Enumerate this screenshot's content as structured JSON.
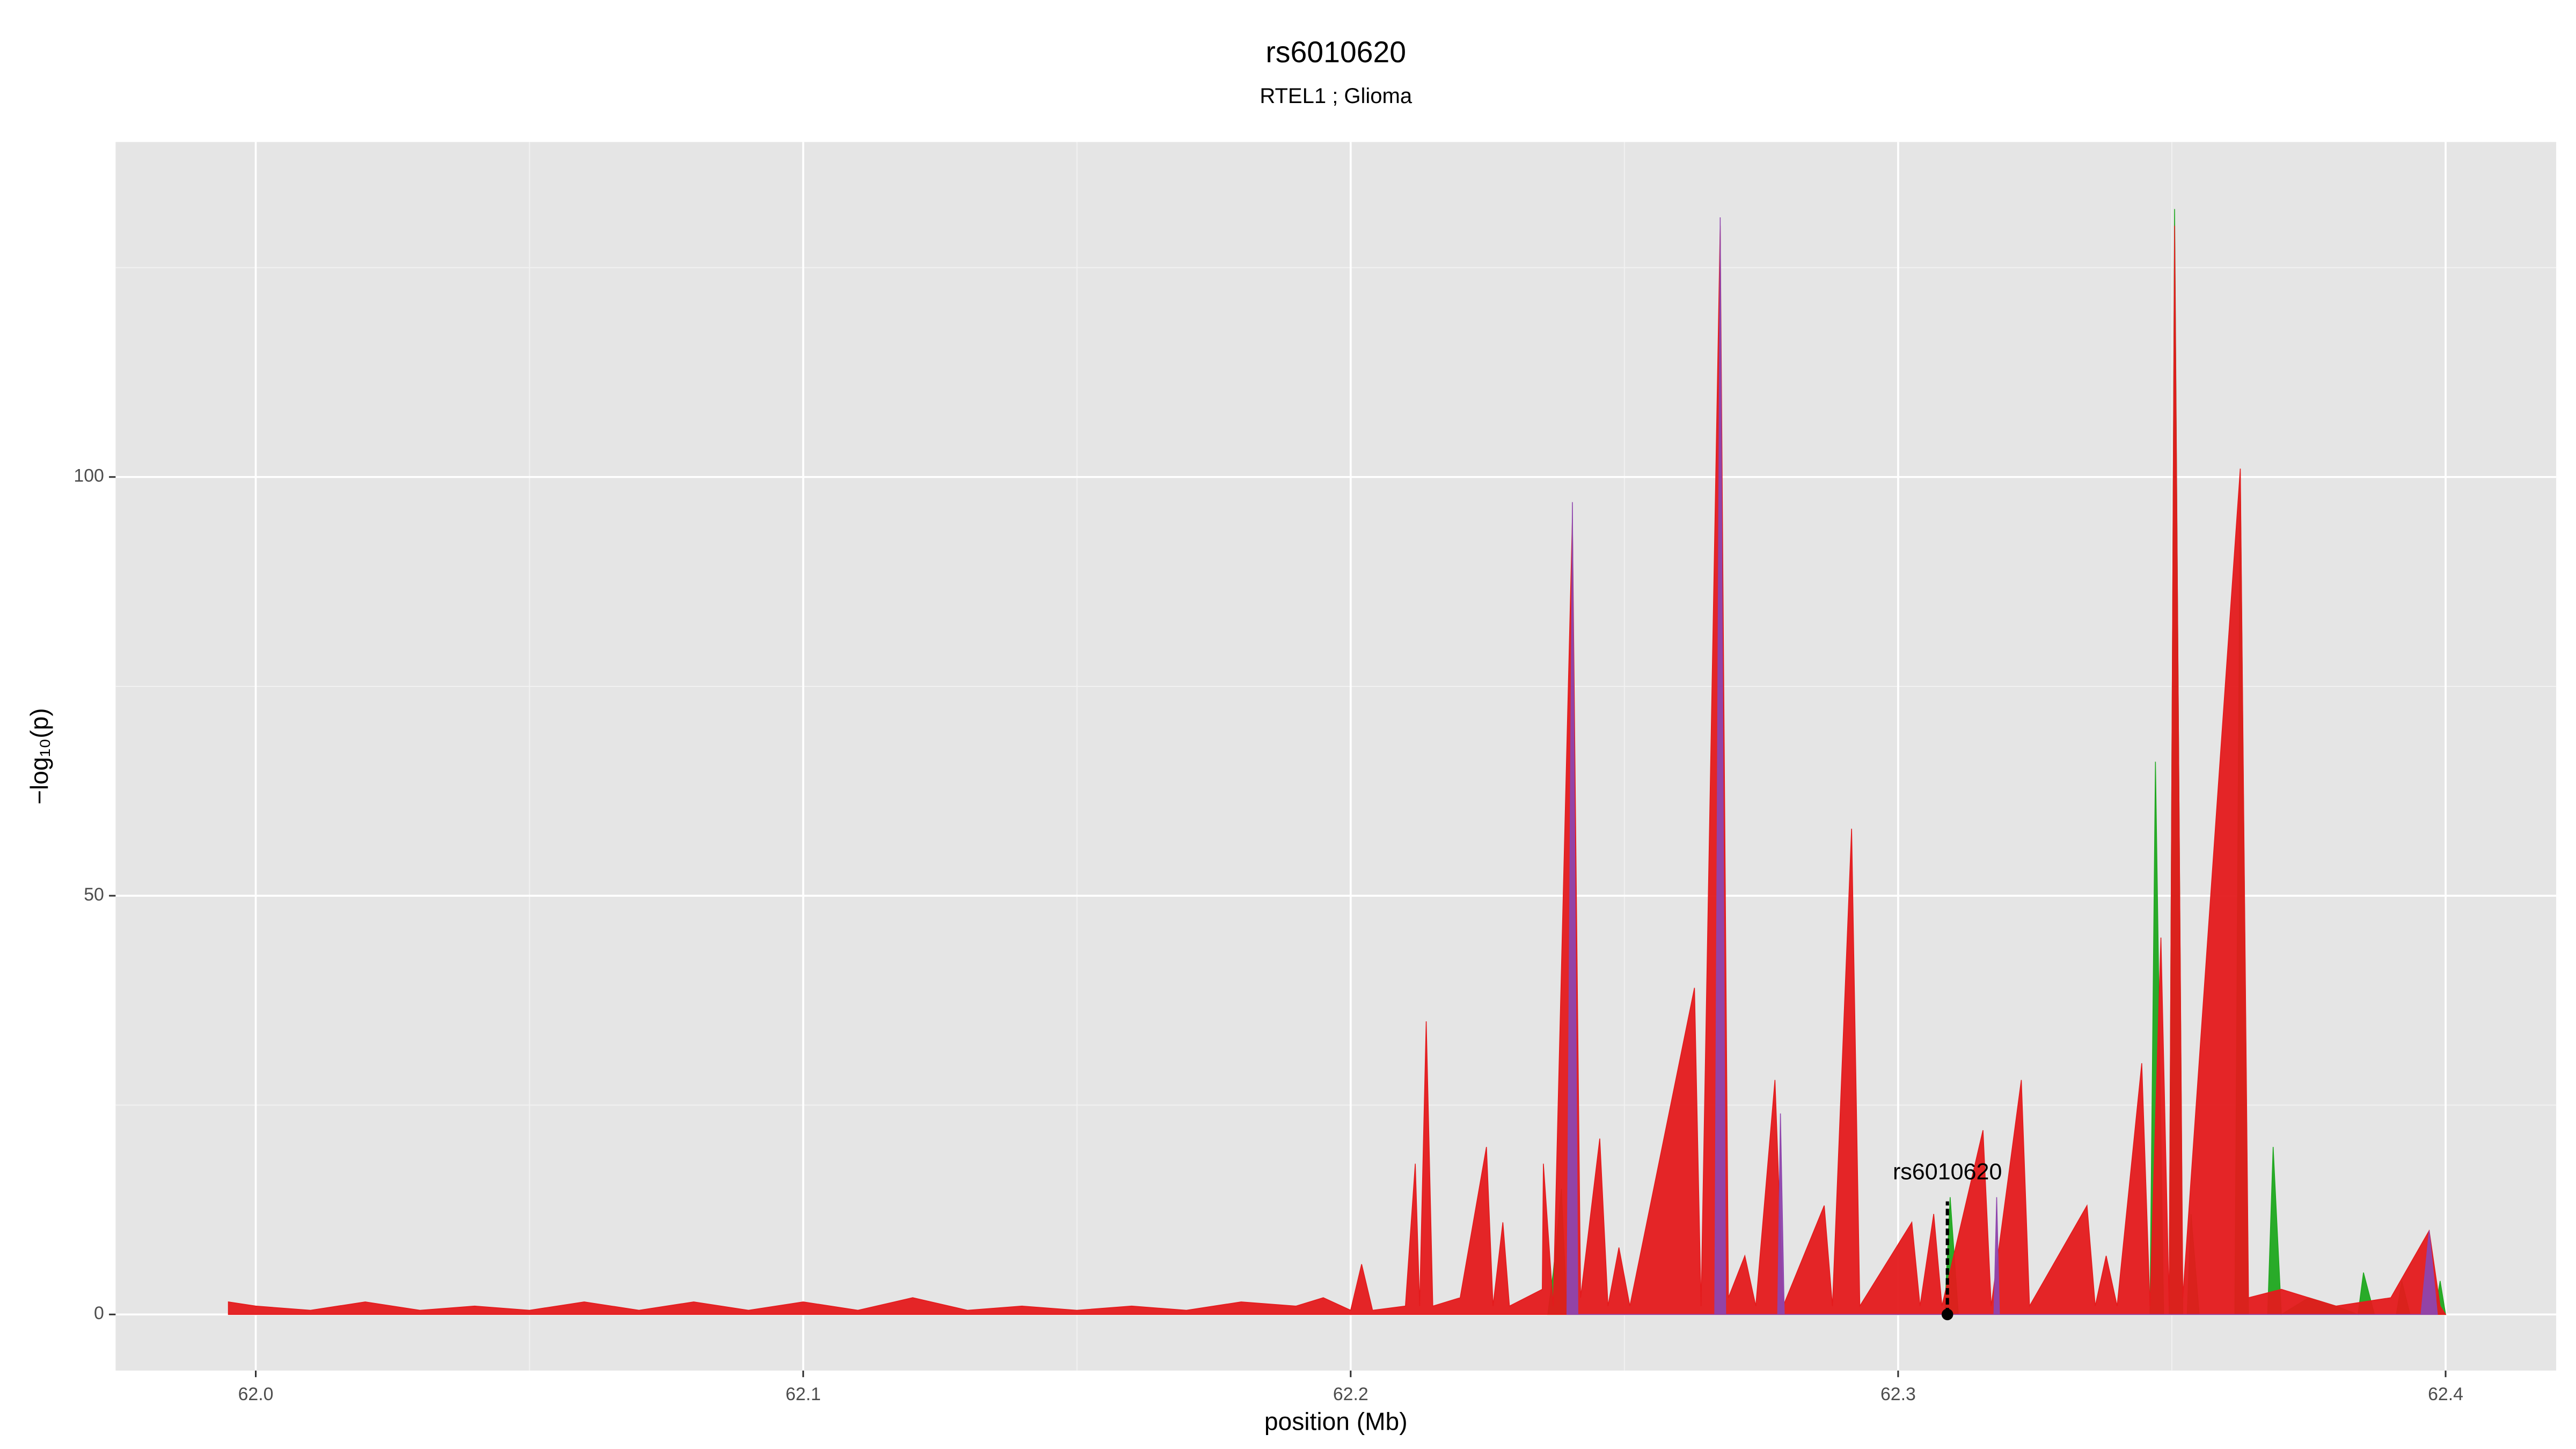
{
  "chart_data": {
    "type": "area",
    "title": "rs6010620",
    "subtitle": "RTEL1 ; Glioma",
    "x_label": "position (Mb)",
    "y_label": "−log₁₀(p)",
    "xlim": [
      61.9744,
      62.4202
    ],
    "ylim": [
      -6.7,
      140
    ],
    "xticks": [
      {
        "value": 62,
        "label": "62.0"
      },
      62.1,
      62.2,
      62.3,
      62.4
    ],
    "yticks": [
      0,
      50,
      100
    ],
    "xminor": [
      62.05,
      62.15,
      62.25,
      62.35
    ],
    "yminor": [
      25,
      75,
      125
    ],
    "grid": true,
    "series": [
      {
        "color": "#1fa81f",
        "x": [
          62.236,
          62.237,
          62.2385,
          62.2395,
          62.3085,
          62.3095,
          62.311,
          62.346,
          62.347,
          62.3485,
          62.3495,
          62.3505,
          62.352,
          62.3528,
          62.3535,
          62.355,
          62.3615,
          62.3625,
          62.364,
          62.3675,
          62.3685,
          62.37,
          62.375,
          62.38,
          62.384,
          62.385,
          62.387,
          62.391,
          62.392,
          62.3935,
          62.398,
          62.399,
          62.4
        ],
        "values": [
          0,
          5,
          15,
          0,
          0,
          14,
          0,
          0,
          66,
          0,
          0,
          132,
          0,
          0,
          12,
          0,
          0,
          100,
          0,
          0,
          20,
          0,
          2,
          1,
          0,
          5,
          0,
          0,
          4,
          0,
          0,
          4,
          0
        ]
      },
      {
        "color": "#e41a1c",
        "x": [
          61.995,
          62.0,
          62.01,
          62.02,
          62.03,
          62.04,
          62.05,
          62.06,
          62.07,
          62.08,
          62.09,
          62.1,
          62.11,
          62.12,
          62.13,
          62.14,
          62.15,
          62.16,
          62.17,
          62.18,
          62.19,
          62.195,
          62.2,
          62.202,
          62.204,
          62.21,
          62.2118,
          62.2126,
          62.2138,
          62.215,
          62.22,
          62.2248,
          62.226,
          62.2278,
          62.229,
          62.235,
          62.2352,
          62.237,
          62.2405,
          62.242,
          62.2455,
          62.247,
          62.249,
          62.251,
          62.2628,
          62.264,
          62.2675,
          62.269,
          62.272,
          62.274,
          62.2775,
          62.279,
          62.2865,
          62.288,
          62.2915,
          62.293,
          62.3025,
          62.304,
          62.3065,
          62.308,
          62.3155,
          62.317,
          62.3225,
          62.324,
          62.3345,
          62.336,
          62.338,
          62.34,
          62.3445,
          62.346,
          62.348,
          62.3495,
          62.3505,
          62.352,
          62.3625,
          62.364,
          62.37,
          62.38,
          62.39,
          62.397,
          62.399,
          62.4
        ],
        "values": [
          1.5,
          1,
          0.5,
          1.5,
          0.5,
          1,
          0.5,
          1.5,
          0.5,
          1.5,
          0.5,
          1.5,
          0.5,
          2,
          0.5,
          1,
          0.5,
          1,
          0.5,
          1.5,
          1,
          2,
          0.5,
          6,
          0.5,
          1,
          18,
          1,
          35,
          1,
          2,
          20,
          1,
          11,
          1,
          3,
          18,
          1,
          95,
          2,
          21,
          1,
          8,
          1,
          39,
          1,
          130,
          2,
          7,
          1,
          28,
          1,
          13,
          1,
          58,
          1,
          11,
          1,
          12,
          1,
          22,
          1,
          28,
          1,
          13,
          1,
          7,
          1,
          30,
          1,
          45,
          1,
          130,
          2,
          101,
          2,
          3,
          1,
          2,
          10,
          1,
          0
        ]
      },
      {
        "color": "#8e44ad",
        "x": [
          62.2395,
          62.2405,
          62.2415,
          62.2665,
          62.2675,
          62.2685,
          62.278,
          62.2785,
          62.2792,
          62.3175,
          62.318,
          62.3185,
          62.3955,
          62.397,
          62.3985
        ],
        "values": [
          0,
          97,
          0,
          0,
          131,
          0,
          0,
          24,
          0,
          0,
          14,
          0,
          0,
          10,
          0
        ]
      }
    ],
    "marker": {
      "label": "rs6010620",
      "x": 62.309,
      "y": 0,
      "line_to": 13.5
    }
  }
}
